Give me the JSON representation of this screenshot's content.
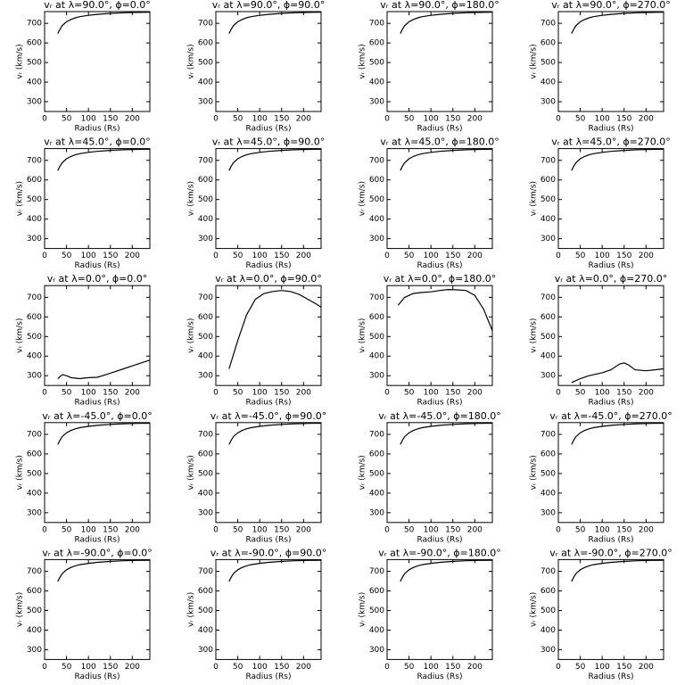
{
  "chart_data": [
    {
      "type": "line",
      "title": "vᵣ at λ=90.0°, ϕ=0.0°",
      "xlabel": "Radius (Rs)",
      "ylabel": "vᵣ (km/s)",
      "x": [
        30,
        35,
        40,
        50,
        60,
        70,
        80,
        100,
        120,
        150,
        180,
        210,
        240
      ],
      "values": [
        648,
        670,
        688,
        708,
        720,
        728,
        734,
        741,
        746,
        751,
        754,
        756,
        757
      ],
      "xlim": [
        0,
        240
      ],
      "ylim": [
        250,
        760
      ],
      "xticks": [
        0,
        50,
        100,
        150,
        200
      ],
      "yticks": [
        300,
        400,
        500,
        600,
        700
      ]
    },
    {
      "type": "line",
      "title": "vᵣ at λ=90.0°, ϕ=90.0°",
      "xlabel": "Radius (Rs)",
      "ylabel": "vᵣ (km/s)",
      "x": [
        30,
        35,
        40,
        50,
        60,
        70,
        80,
        100,
        120,
        150,
        180,
        210,
        240
      ],
      "values": [
        648,
        670,
        688,
        708,
        720,
        728,
        734,
        741,
        746,
        751,
        754,
        756,
        757
      ],
      "xlim": [
        0,
        240
      ],
      "ylim": [
        250,
        760
      ],
      "xticks": [
        0,
        50,
        100,
        150,
        200
      ],
      "yticks": [
        300,
        400,
        500,
        600,
        700
      ]
    },
    {
      "type": "line",
      "title": "vᵣ at λ=90.0°, ϕ=180.0°",
      "xlabel": "Radius (Rs)",
      "ylabel": "vᵣ (km/s)",
      "x": [
        30,
        35,
        40,
        50,
        60,
        70,
        80,
        100,
        120,
        150,
        180,
        210,
        240
      ],
      "values": [
        648,
        670,
        688,
        708,
        720,
        728,
        734,
        741,
        746,
        751,
        754,
        756,
        757
      ],
      "xlim": [
        0,
        240
      ],
      "ylim": [
        250,
        760
      ],
      "xticks": [
        0,
        50,
        100,
        150,
        200
      ],
      "yticks": [
        300,
        400,
        500,
        600,
        700
      ]
    },
    {
      "type": "line",
      "title": "vᵣ at λ=90.0°, ϕ=270.0°",
      "xlabel": "Radius (Rs)",
      "ylabel": "vᵣ (km/s)",
      "x": [
        30,
        35,
        40,
        50,
        60,
        70,
        80,
        100,
        120,
        150,
        180,
        210,
        240
      ],
      "values": [
        648,
        670,
        688,
        708,
        720,
        728,
        734,
        741,
        746,
        751,
        754,
        756,
        757
      ],
      "xlim": [
        0,
        240
      ],
      "ylim": [
        250,
        760
      ],
      "xticks": [
        0,
        50,
        100,
        150,
        200
      ],
      "yticks": [
        300,
        400,
        500,
        600,
        700
      ]
    },
    {
      "type": "line",
      "title": "vᵣ at λ=45.0°, ϕ=0.0°",
      "xlabel": "Radius (Rs)",
      "ylabel": "vᵣ (km/s)",
      "x": [
        30,
        35,
        40,
        50,
        60,
        70,
        80,
        100,
        120,
        150,
        180,
        210,
        240
      ],
      "values": [
        648,
        670,
        688,
        708,
        720,
        728,
        734,
        741,
        746,
        751,
        754,
        756,
        757
      ],
      "xlim": [
        0,
        240
      ],
      "ylim": [
        250,
        760
      ],
      "xticks": [
        0,
        50,
        100,
        150,
        200
      ],
      "yticks": [
        300,
        400,
        500,
        600,
        700
      ]
    },
    {
      "type": "line",
      "title": "vᵣ at λ=45.0°, ϕ=90.0°",
      "xlabel": "Radius (Rs)",
      "ylabel": "vᵣ (km/s)",
      "x": [
        30,
        35,
        40,
        50,
        60,
        70,
        80,
        100,
        120,
        150,
        180,
        210,
        240
      ],
      "values": [
        648,
        670,
        688,
        708,
        720,
        728,
        734,
        741,
        746,
        751,
        754,
        756,
        757
      ],
      "xlim": [
        0,
        240
      ],
      "ylim": [
        250,
        760
      ],
      "xticks": [
        0,
        50,
        100,
        150,
        200
      ],
      "yticks": [
        300,
        400,
        500,
        600,
        700
      ]
    },
    {
      "type": "line",
      "title": "vᵣ at λ=45.0°, ϕ=180.0°",
      "xlabel": "Radius (Rs)",
      "ylabel": "vᵣ (km/s)",
      "x": [
        30,
        35,
        40,
        50,
        60,
        70,
        80,
        100,
        120,
        150,
        180,
        210,
        240
      ],
      "values": [
        648,
        670,
        688,
        708,
        720,
        728,
        734,
        741,
        746,
        751,
        754,
        756,
        757
      ],
      "xlim": [
        0,
        240
      ],
      "ylim": [
        250,
        760
      ],
      "xticks": [
        0,
        50,
        100,
        150,
        200
      ],
      "yticks": [
        300,
        400,
        500,
        600,
        700
      ]
    },
    {
      "type": "line",
      "title": "vᵣ at λ=45.0°, ϕ=270.0°",
      "xlabel": "Radius (Rs)",
      "ylabel": "vᵣ (km/s)",
      "x": [
        30,
        35,
        40,
        50,
        60,
        70,
        80,
        100,
        120,
        150,
        180,
        210,
        240
      ],
      "values": [
        648,
        670,
        688,
        708,
        720,
        728,
        734,
        741,
        746,
        751,
        754,
        756,
        757
      ],
      "xlim": [
        0,
        240
      ],
      "ylim": [
        250,
        760
      ],
      "xticks": [
        0,
        50,
        100,
        150,
        200
      ],
      "yticks": [
        300,
        400,
        500,
        600,
        700
      ]
    },
    {
      "type": "line",
      "title": "vᵣ at λ=0.0°, ϕ=0.0°",
      "xlabel": "Radius (Rs)",
      "ylabel": "vᵣ (km/s)",
      "x": [
        30,
        40,
        50,
        60,
        80,
        100,
        120,
        140,
        160,
        180,
        200,
        220,
        240
      ],
      "values": [
        285,
        305,
        300,
        290,
        285,
        290,
        292,
        305,
        320,
        335,
        350,
        365,
        380
      ],
      "xlim": [
        0,
        240
      ],
      "ylim": [
        250,
        760
      ],
      "xticks": [
        0,
        50,
        100,
        150,
        200
      ],
      "yticks": [
        300,
        400,
        500,
        600,
        700
      ]
    },
    {
      "type": "line",
      "title": "vᵣ at λ=0.0°, ϕ=90.0°",
      "xlabel": "Radius (Rs)",
      "ylabel": "vᵣ (km/s)",
      "x": [
        30,
        50,
        70,
        90,
        110,
        130,
        150,
        170,
        190,
        210,
        230,
        240
      ],
      "values": [
        335,
        480,
        610,
        690,
        720,
        730,
        735,
        730,
        715,
        690,
        665,
        650
      ],
      "xlim": [
        0,
        240
      ],
      "ylim": [
        250,
        760
      ],
      "xticks": [
        0,
        50,
        100,
        150,
        200
      ],
      "yticks": [
        300,
        400,
        500,
        600,
        700
      ]
    },
    {
      "type": "line",
      "title": "vᵣ at λ=0.0°, ϕ=180.0°",
      "xlabel": "Radius (Rs)",
      "ylabel": "vᵣ (km/s)",
      "x": [
        25,
        40,
        60,
        80,
        100,
        120,
        140,
        160,
        180,
        200,
        220,
        240
      ],
      "values": [
        660,
        700,
        720,
        725,
        728,
        735,
        740,
        738,
        735,
        710,
        640,
        530
      ],
      "xlim": [
        0,
        240
      ],
      "ylim": [
        250,
        760
      ],
      "xticks": [
        0,
        50,
        100,
        150,
        200
      ],
      "yticks": [
        300,
        400,
        500,
        600,
        700
      ]
    },
    {
      "type": "line",
      "title": "vᵣ at λ=0.0°, ϕ=270.0°",
      "xlabel": "Radius (Rs)",
      "ylabel": "vᵣ (km/s)",
      "x": [
        30,
        50,
        70,
        100,
        120,
        140,
        150,
        160,
        175,
        200,
        220,
        240
      ],
      "values": [
        265,
        285,
        300,
        315,
        330,
        360,
        365,
        355,
        330,
        325,
        330,
        335
      ],
      "xlim": [
        0,
        240
      ],
      "ylim": [
        250,
        760
      ],
      "xticks": [
        0,
        50,
        100,
        150,
        200
      ],
      "yticks": [
        300,
        400,
        500,
        600,
        700
      ]
    },
    {
      "type": "line",
      "title": "vᵣ at λ=-45.0°, ϕ=0.0°",
      "xlabel": "Radius (Rs)",
      "ylabel": "vᵣ (km/s)",
      "x": [
        30,
        35,
        40,
        50,
        60,
        70,
        80,
        100,
        120,
        150,
        180,
        210,
        240
      ],
      "values": [
        648,
        670,
        688,
        708,
        720,
        728,
        734,
        741,
        746,
        751,
        754,
        756,
        757
      ],
      "xlim": [
        0,
        240
      ],
      "ylim": [
        250,
        760
      ],
      "xticks": [
        0,
        50,
        100,
        150,
        200
      ],
      "yticks": [
        300,
        400,
        500,
        600,
        700
      ]
    },
    {
      "type": "line",
      "title": "vᵣ at λ=-45.0°, ϕ=90.0°",
      "xlabel": "Radius (Rs)",
      "ylabel": "vᵣ (km/s)",
      "x": [
        30,
        35,
        40,
        50,
        60,
        70,
        80,
        100,
        120,
        150,
        180,
        210,
        240
      ],
      "values": [
        648,
        670,
        688,
        708,
        720,
        728,
        734,
        741,
        746,
        751,
        754,
        756,
        757
      ],
      "xlim": [
        0,
        240
      ],
      "ylim": [
        250,
        760
      ],
      "xticks": [
        0,
        50,
        100,
        150,
        200
      ],
      "yticks": [
        300,
        400,
        500,
        600,
        700
      ]
    },
    {
      "type": "line",
      "title": "vᵣ at λ=-45.0°, ϕ=180.0°",
      "xlabel": "Radius (Rs)",
      "ylabel": "vᵣ (km/s)",
      "x": [
        30,
        35,
        40,
        50,
        60,
        70,
        80,
        100,
        120,
        150,
        180,
        210,
        240
      ],
      "values": [
        648,
        670,
        688,
        708,
        720,
        728,
        734,
        741,
        746,
        751,
        754,
        756,
        757
      ],
      "xlim": [
        0,
        240
      ],
      "ylim": [
        250,
        760
      ],
      "xticks": [
        0,
        50,
        100,
        150,
        200
      ],
      "yticks": [
        300,
        400,
        500,
        600,
        700
      ]
    },
    {
      "type": "line",
      "title": "vᵣ at λ=-45.0°, ϕ=270.0°",
      "xlabel": "Radius (Rs)",
      "ylabel": "vᵣ (km/s)",
      "x": [
        30,
        35,
        40,
        50,
        60,
        70,
        80,
        100,
        120,
        150,
        180,
        210,
        240
      ],
      "values": [
        648,
        670,
        688,
        708,
        720,
        728,
        734,
        741,
        746,
        751,
        754,
        756,
        757
      ],
      "xlim": [
        0,
        240
      ],
      "ylim": [
        250,
        760
      ],
      "xticks": [
        0,
        50,
        100,
        150,
        200
      ],
      "yticks": [
        300,
        400,
        500,
        600,
        700
      ]
    },
    {
      "type": "line",
      "title": "vᵣ at λ=-90.0°, ϕ=0.0°",
      "xlabel": "Radius (Rs)",
      "ylabel": "vᵣ (km/s)",
      "x": [
        30,
        35,
        40,
        50,
        60,
        70,
        80,
        100,
        120,
        150,
        180,
        210,
        240
      ],
      "values": [
        648,
        670,
        688,
        708,
        720,
        728,
        734,
        741,
        746,
        751,
        754,
        756,
        757
      ],
      "xlim": [
        0,
        240
      ],
      "ylim": [
        250,
        760
      ],
      "xticks": [
        0,
        50,
        100,
        150,
        200
      ],
      "yticks": [
        300,
        400,
        500,
        600,
        700
      ]
    },
    {
      "type": "line",
      "title": "vᵣ at λ=-90.0°, ϕ=90.0°",
      "xlabel": "Radius (Rs)",
      "ylabel": "vᵣ (km/s)",
      "x": [
        30,
        35,
        40,
        50,
        60,
        70,
        80,
        100,
        120,
        150,
        180,
        210,
        240
      ],
      "values": [
        648,
        670,
        688,
        708,
        720,
        728,
        734,
        741,
        746,
        751,
        754,
        756,
        757
      ],
      "xlim": [
        0,
        240
      ],
      "ylim": [
        250,
        760
      ],
      "xticks": [
        0,
        50,
        100,
        150,
        200
      ],
      "yticks": [
        300,
        400,
        500,
        600,
        700
      ]
    },
    {
      "type": "line",
      "title": "vᵣ at λ=-90.0°, ϕ=180.0°",
      "xlabel": "Radius (Rs)",
      "ylabel": "vᵣ (km/s)",
      "x": [
        30,
        35,
        40,
        50,
        60,
        70,
        80,
        100,
        120,
        150,
        180,
        210,
        240
      ],
      "values": [
        648,
        670,
        688,
        708,
        720,
        728,
        734,
        741,
        746,
        751,
        754,
        756,
        757
      ],
      "xlim": [
        0,
        240
      ],
      "ylim": [
        250,
        760
      ],
      "xticks": [
        0,
        50,
        100,
        150,
        200
      ],
      "yticks": [
        300,
        400,
        500,
        600,
        700
      ]
    },
    {
      "type": "line",
      "title": "vᵣ at λ=-90.0°, ϕ=270.0°",
      "xlabel": "Radius (Rs)",
      "ylabel": "vᵣ (km/s)",
      "x": [
        30,
        35,
        40,
        50,
        60,
        70,
        80,
        100,
        120,
        150,
        180,
        210,
        240
      ],
      "values": [
        648,
        670,
        688,
        708,
        720,
        728,
        734,
        741,
        746,
        751,
        754,
        756,
        757
      ],
      "xlim": [
        0,
        240
      ],
      "ylim": [
        250,
        760
      ],
      "xticks": [
        0,
        50,
        100,
        150,
        200
      ],
      "yticks": [
        300,
        400,
        500,
        600,
        700
      ]
    }
  ]
}
